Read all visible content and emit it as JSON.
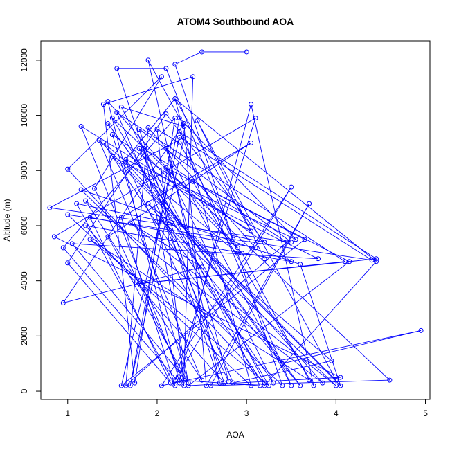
{
  "chart_data": {
    "type": "line",
    "title": "ATOM4 Southbound AOA",
    "xlabel": "AOA",
    "ylabel": "Altitude (m)",
    "xlim": [
      0.7,
      5.05
    ],
    "ylim": [
      -300,
      12700
    ],
    "xticks": [
      1,
      2,
      3,
      4,
      5
    ],
    "xtick_labels": [
      "1",
      "2",
      "3",
      "4",
      "5"
    ],
    "yticks": [
      0,
      2000,
      4000,
      6000,
      8000,
      10000,
      12000
    ],
    "ytick_labels": [
      "0",
      "2000",
      "4000",
      "6000",
      "8000",
      "10000",
      "12000"
    ],
    "grid": false,
    "legend": "none",
    "markers": "open-circle",
    "series_color": "#0000ff",
    "series": [
      {
        "x": [
          3.0,
          2.5,
          2.2,
          2.85,
          2.1,
          1.55,
          2.7,
          1.9,
          2.3,
          1.6,
          3.2,
          1.0,
          2.05,
          1.3,
          2.3,
          2.4,
          1.4,
          1.75,
          2.2,
          0.95,
          2.25,
          1.45,
          2.9,
          2.25,
          2.0,
          2.3,
          1.15,
          3.05,
          2.2,
          1.65,
          3.55,
          2.25,
          1.7,
          2.3,
          0.8,
          3.5,
          1.8,
          2.75,
          1.2,
          3.5,
          1.5,
          2.35,
          1.45,
          3.05,
          1.6,
          2.2,
          1.1,
          3.2,
          2.1,
          1.0,
          2.15,
          1.25,
          3.1,
          1.9,
          1.65,
          3.45,
          1.85,
          2.35,
          1.05,
          3.8,
          1.5,
          4.05,
          3.6,
          1.15,
          3.4,
          2.9,
          1.4,
          3.2,
          4.45,
          2.2,
          3.05,
          1.0,
          4.4,
          2.25,
          1.6,
          3.65,
          2.1,
          3.3,
          2.05,
          4.0,
          1.7,
          2.5,
          0.95,
          2.3,
          2.55,
          3.7,
          2.6,
          4.6,
          1.5,
          3.25,
          1.25,
          3.7,
          2.95,
          1.8,
          3.15,
          2.25,
          3.05,
          3.75,
          2.4,
          4.15,
          2.35,
          4.05,
          0.85,
          3.1,
          2.2,
          3.5,
          2.05,
          4.95,
          3.4,
          1.45,
          3.6,
          1.9,
          3.95,
          2.85,
          1.55,
          4.1,
          1.8,
          4.45,
          2.25,
          3.5,
          2.1,
          2.8,
          1.65,
          3.85,
          1.2,
          2.5,
          1.35,
          4.0,
          2.45,
          3.2
        ],
        "y": [
          12300,
          12300,
          11850,
          5500,
          11700,
          11700,
          300,
          12000,
          9600,
          10300,
          300,
          8050,
          11400,
          7350,
          400,
          11400,
          10400,
          300,
          9900,
          5200,
          300,
          10500,
          5200,
          9000,
          9500,
          200,
          9600,
          5800,
          10600,
          8400,
          5500,
          9900,
          200,
          9200,
          6650,
          5400,
          9500,
          300,
          6000,
          4700,
          9300,
          300,
          5600,
          9000,
          6300,
          200,
          6800,
          5400,
          10050,
          4650,
          300,
          6300,
          5200,
          9550,
          200,
          5400,
          8800,
          300,
          5350,
          4800,
          8500,
          200,
          4600,
          7300,
          200,
          5000,
          9000,
          200,
          4700,
          10600,
          200,
          6400,
          4750,
          9200,
          200,
          5500,
          8100,
          300,
          6200,
          200,
          6100,
          4500,
          3200,
          9700,
          200,
          6800,
          200,
          400,
          9900,
          200,
          5500,
          400,
          5000,
          8800,
          200,
          400,
          10400,
          200,
          7600,
          4700,
          200,
          500,
          5600,
          9900,
          400,
          7400,
          200,
          2200,
          1000,
          9700,
          200,
          6800,
          1100,
          300,
          10100,
          4700,
          3900,
          4800,
          9400,
          200,
          8800,
          350,
          8300,
          300,
          6900,
          400,
          9100,
          400,
          9800,
          4800
        ]
      }
    ]
  }
}
